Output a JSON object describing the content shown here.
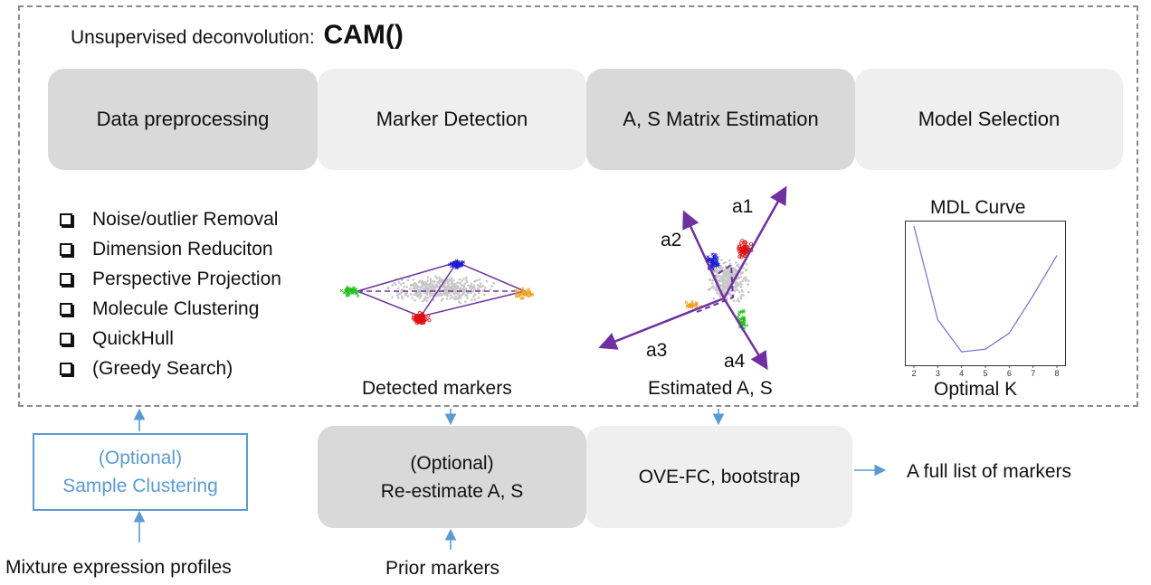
{
  "header": {
    "prefix": "Unsupervised deconvolution:",
    "function": "CAM()"
  },
  "stages": [
    {
      "label": "Data preprocessing",
      "shade": "dark"
    },
    {
      "label": "Marker Detection",
      "shade": "light"
    },
    {
      "label": "A, S Matrix Estimation",
      "shade": "dark"
    },
    {
      "label": "Model Selection",
      "shade": "light"
    }
  ],
  "preprocessing_steps": [
    "Noise/outlier Removal",
    "Dimension Reduciton",
    "Perspective Projection",
    "Molecule Clustering",
    "QuickHull",
    "(Greedy Search)"
  ],
  "captions": {
    "detected_markers": "Detected markers",
    "estimated": "Estimated A, S",
    "mdl_title": "MDL Curve",
    "optimal_k": "Optimal K"
  },
  "vectors": [
    "a1",
    "a2",
    "a3",
    "a4"
  ],
  "mdl_chart": {
    "x_ticks": [
      "2",
      "3",
      "4",
      "5",
      "6",
      "7",
      "8"
    ],
    "points": [
      [
        2,
        1.0
      ],
      [
        3,
        0.3
      ],
      [
        4,
        0.06
      ],
      [
        5,
        0.08
      ],
      [
        6,
        0.2
      ],
      [
        7,
        0.48
      ],
      [
        8,
        0.78
      ]
    ]
  },
  "bottom": {
    "sample_clustering": {
      "line1": "(Optional)",
      "line2": "Sample Clustering"
    },
    "reestimate": {
      "line1": "(Optional)",
      "line2": "Re-estimate A, S"
    },
    "ove": "OVE-FC, bootstrap",
    "full_list": "A full list of markers",
    "mixture": "Mixture expression profiles",
    "prior": "Prior markers"
  },
  "colors": {
    "arrow": "#5b9bd5",
    "purple": "#7030a0",
    "cluster_blue": "#1f1fd0",
    "cluster_red": "#e01010",
    "cluster_green": "#22c020",
    "cluster_orange": "#f0a020",
    "mdl_line": "#6f6fd8"
  }
}
